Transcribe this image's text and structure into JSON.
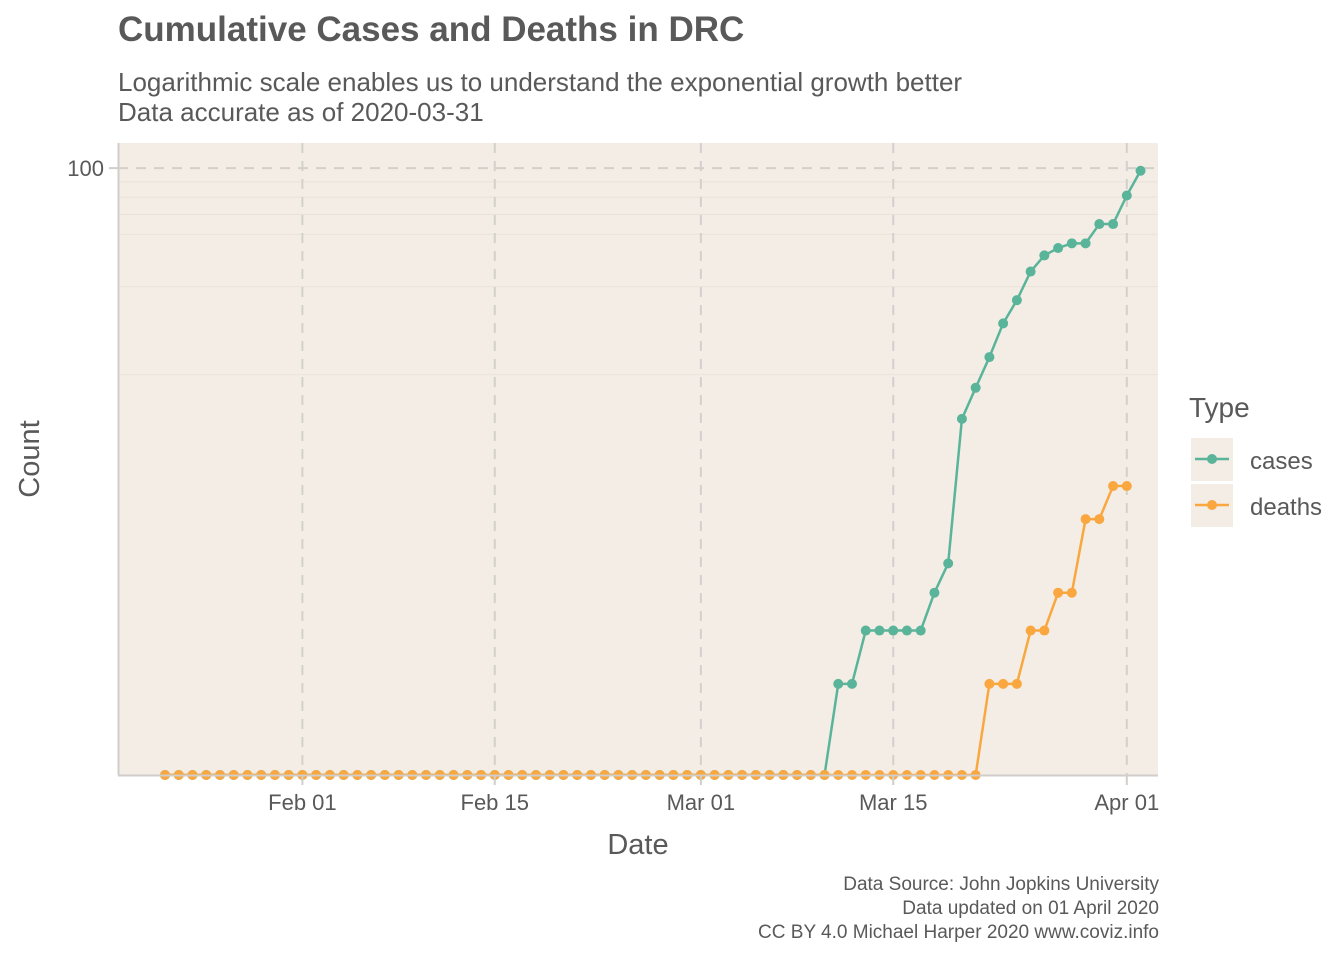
{
  "chart_data": {
    "type": "line",
    "title": "Cumulative Cases and Deaths in DRC",
    "subtitle": [
      "Logarithmic scale enables us to understand the exponential growth better",
      "Data accurate as of 2020-03-31"
    ],
    "xlabel": "Date",
    "ylabel": "Count",
    "x_ticks": [
      "Feb 01",
      "Feb 15",
      "Mar 01",
      "Mar 15",
      "Apr 01"
    ],
    "x_tick_dates": [
      "2020-02-01",
      "2020-02-15",
      "2020-03-01",
      "2020-03-15",
      "2020-04-01"
    ],
    "y_ticks": [
      "100"
    ],
    "y_scale": "log",
    "grid": true,
    "legend": {
      "title": "Type",
      "position": "right",
      "entries": [
        "cases",
        "deaths"
      ]
    },
    "x_start": "2020-01-22",
    "x_end": "2020-03-31",
    "series": [
      {
        "name": "cases",
        "color": "#5ab499",
        "values": [
          0,
          0,
          0,
          0,
          0,
          0,
          0,
          0,
          0,
          0,
          0,
          0,
          0,
          0,
          0,
          0,
          0,
          0,
          0,
          0,
          0,
          0,
          0,
          0,
          0,
          0,
          0,
          0,
          0,
          0,
          0,
          0,
          0,
          0,
          0,
          0,
          0,
          0,
          0,
          0,
          0,
          0,
          0,
          0,
          0,
          0,
          0,
          0,
          0,
          1,
          1,
          2,
          2,
          2,
          2,
          2,
          3,
          4,
          14,
          18,
          23,
          30,
          36,
          45,
          51,
          54,
          56,
          56,
          65,
          65,
          81,
          98
        ]
      },
      {
        "name": "deaths",
        "color": "#f9a73e",
        "values": [
          0,
          0,
          0,
          0,
          0,
          0,
          0,
          0,
          0,
          0,
          0,
          0,
          0,
          0,
          0,
          0,
          0,
          0,
          0,
          0,
          0,
          0,
          0,
          0,
          0,
          0,
          0,
          0,
          0,
          0,
          0,
          0,
          0,
          0,
          0,
          0,
          0,
          0,
          0,
          0,
          0,
          0,
          0,
          0,
          0,
          0,
          0,
          0,
          0,
          0,
          0,
          0,
          0,
          0,
          0,
          0,
          0,
          0,
          0,
          0,
          1,
          1,
          1,
          2,
          2,
          3,
          3,
          6,
          6,
          8,
          8
        ]
      }
    ]
  },
  "caption": {
    "line1": "Data Source: John Jopkins University",
    "line2": "Data updated on 01 April 2020",
    "line3": "CC BY 4.0 Michael Harper 2020 www.coviz.info"
  }
}
